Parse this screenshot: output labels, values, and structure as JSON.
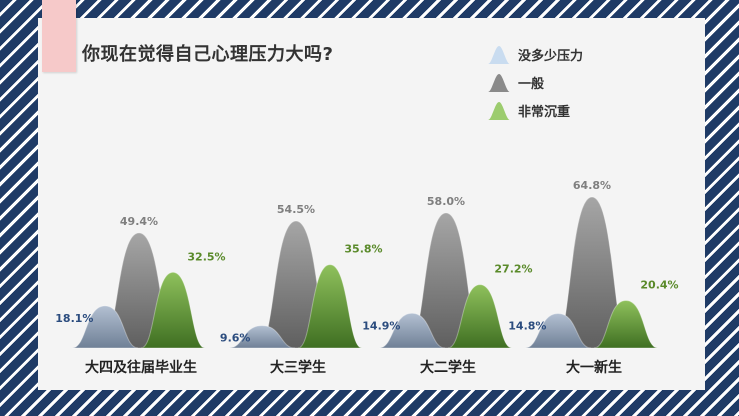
{
  "title": "你现在觉得自己心理压力大吗?",
  "chart_data": {
    "type": "area",
    "title": "你现在觉得自己心理压力大吗?",
    "categories": [
      "大四及往届毕业生",
      "大三学生",
      "大二学生",
      "大一新生"
    ],
    "series": [
      {
        "name": "没多少压力",
        "values": [
          18.1,
          9.6,
          14.9,
          14.8
        ],
        "color": "#8c9db3",
        "label_color": "#2b4c7e"
      },
      {
        "name": "一般",
        "values": [
          49.4,
          54.5,
          58.0,
          64.8
        ],
        "color": "#858585",
        "label_color": "#7f7f7f"
      },
      {
        "name": "非常沉重",
        "values": [
          32.5,
          35.8,
          27.2,
          20.4
        ],
        "color": "#6a9a3e",
        "label_color": "#5a8a2a"
      }
    ],
    "value_labels": [
      [
        "18.1%",
        "9.6%",
        "14.9%",
        "14.8%"
      ],
      [
        "49.4%",
        "54.5%",
        "58.0%",
        "64.8%"
      ],
      [
        "32.5%",
        "35.8%",
        "27.2%",
        "20.4%"
      ]
    ],
    "ylim": [
      0,
      70
    ],
    "grid": false,
    "legend_position": "top-right"
  },
  "legend": {
    "items": [
      {
        "label": "没多少压力",
        "color": "#c9dcf0"
      },
      {
        "label": "一般",
        "color": "#8a8a8a"
      },
      {
        "label": "非常沉重",
        "color": "#9ccc6e"
      }
    ]
  }
}
